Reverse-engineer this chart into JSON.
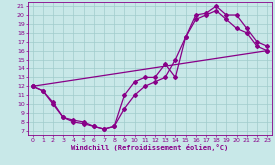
{
  "title": "",
  "xlabel": "Windchill (Refroidissement éolien,°C)",
  "bg_color": "#c8e8e8",
  "grid_color": "#a0cccc",
  "line_color": "#880088",
  "xlim": [
    -0.5,
    23.5
  ],
  "ylim": [
    6.5,
    21.5
  ],
  "yticks": [
    7,
    8,
    9,
    10,
    11,
    12,
    13,
    14,
    15,
    16,
    17,
    18,
    19,
    20,
    21
  ],
  "xticks": [
    0,
    1,
    2,
    3,
    4,
    5,
    6,
    7,
    8,
    9,
    10,
    11,
    12,
    13,
    14,
    15,
    16,
    17,
    18,
    19,
    20,
    21,
    22,
    23
  ],
  "line1_x": [
    0,
    1,
    2,
    3,
    4,
    5,
    6,
    7,
    8,
    9,
    10,
    11,
    12,
    13,
    14,
    15,
    16,
    17,
    18,
    19,
    20,
    21,
    22,
    23
  ],
  "line1_y": [
    12,
    11.5,
    10,
    8.5,
    8,
    7.8,
    7.5,
    7.2,
    7.5,
    11,
    12.5,
    13,
    13,
    14.5,
    13,
    17.5,
    20,
    20.2,
    21,
    20,
    20,
    18.5,
    17,
    16.5
  ],
  "line2_x": [
    0,
    1,
    2,
    3,
    4,
    5,
    6,
    7,
    8,
    9,
    10,
    11,
    12,
    13,
    14,
    15,
    16,
    17,
    18,
    19,
    20,
    21,
    22,
    23
  ],
  "line2_y": [
    12,
    11.5,
    10.2,
    8.5,
    8.2,
    8.0,
    7.5,
    7.2,
    7.5,
    9.5,
    11,
    12,
    12.5,
    13,
    15,
    17.5,
    19.5,
    20,
    20.5,
    19.5,
    18.5,
    18.0,
    16.5,
    16.0
  ],
  "line3_x": [
    0,
    23
  ],
  "line3_y": [
    12,
    16.0
  ],
  "marker": "D",
  "markersize": 2.0,
  "linewidth": 0.9
}
